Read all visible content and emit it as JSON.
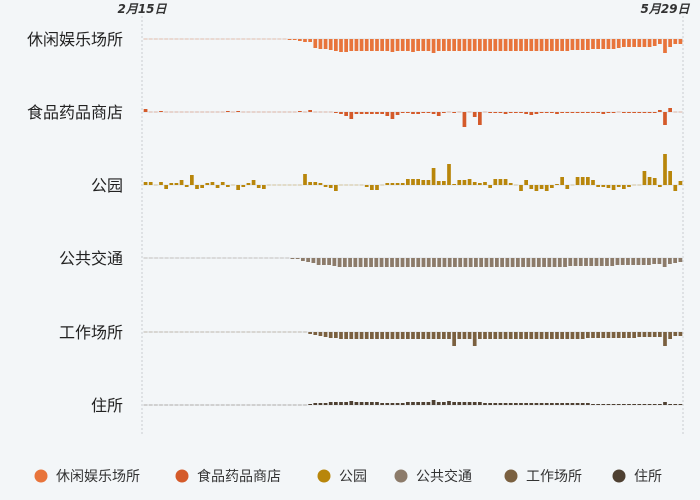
{
  "chart_data": {
    "type": "bar",
    "date_labels": {
      "start": "2月15日",
      "end": "5月29日"
    },
    "x": {
      "start": "2020-02-15",
      "end": "2020-05-29",
      "count": 105
    },
    "grid": false,
    "legend_position": "bottom",
    "series": [
      {
        "name": "休闲娱乐场所",
        "color": "#e8743b",
        "values": [
          0,
          0,
          0,
          0,
          0,
          0,
          0,
          0,
          0,
          0,
          0,
          0,
          0,
          0,
          0,
          0,
          0,
          0,
          0,
          0,
          0,
          0,
          0,
          0,
          0,
          0,
          0,
          0,
          -1,
          -1,
          -2,
          -3,
          -3,
          -9,
          -10,
          -10,
          -11,
          -12,
          -13,
          -13,
          -12,
          -12,
          -12,
          -12,
          -12,
          -12,
          -12,
          -12,
          -13,
          -12,
          -12,
          -12,
          -13,
          -12,
          -12,
          -12,
          -14,
          -12,
          -12,
          -12,
          -12,
          -12,
          -12,
          -12,
          -12,
          -12,
          -12,
          -12,
          -12,
          -12,
          -12,
          -12,
          -12,
          -12,
          -12,
          -12,
          -12,
          -12,
          -12,
          -12,
          -12,
          -12,
          -12,
          -11,
          -11,
          -11,
          -11,
          -10,
          -10,
          -10,
          -10,
          -10,
          -9,
          -8,
          -8,
          -8,
          -8,
          -8,
          -8,
          -7,
          -5,
          -14,
          -8,
          -5,
          -5
        ]
      },
      {
        "name": "食品药品商店",
        "color": "#d45a2a",
        "values": [
          3,
          0,
          0,
          1,
          0,
          0,
          0,
          0,
          0,
          0,
          0,
          0,
          0,
          0,
          0,
          0,
          1,
          0,
          1,
          0,
          0,
          0,
          0,
          0,
          0,
          0,
          0,
          0,
          0,
          0,
          1,
          0,
          2,
          0,
          0,
          0,
          0,
          -1,
          -2,
          -4,
          -7,
          -2,
          -2,
          -2,
          -2,
          -2,
          -2,
          -4,
          -7,
          -3,
          -1,
          -1,
          -2,
          -2,
          -1,
          -1,
          -2,
          -4,
          -1,
          0,
          -1,
          0,
          -15,
          0,
          -5,
          -13,
          0,
          -1,
          -1,
          -1,
          -2,
          -1,
          -1,
          -1,
          -2,
          -3,
          -2,
          -1,
          -1,
          -1,
          -2,
          -1,
          -1,
          -1,
          -1,
          -1,
          -1,
          -1,
          -1,
          -2,
          -1,
          -1,
          0,
          -1,
          -1,
          -1,
          -1,
          -1,
          -1,
          -1,
          2,
          -13,
          4,
          0,
          0
        ]
      },
      {
        "name": "公园",
        "color": "#b8860b",
        "values": [
          3,
          3,
          0,
          3,
          -4,
          2,
          2,
          5,
          -2,
          10,
          -4,
          -3,
          2,
          3,
          -3,
          3,
          -2,
          0,
          -5,
          -2,
          2,
          5,
          -3,
          -4,
          0,
          0,
          0,
          0,
          0,
          0,
          0,
          11,
          3,
          3,
          2,
          -2,
          -3,
          -6,
          0,
          0,
          0,
          0,
          0,
          -2,
          -5,
          -5,
          0,
          2,
          2,
          2,
          2,
          6,
          6,
          6,
          5,
          5,
          17,
          4,
          4,
          21,
          1,
          5,
          5,
          6,
          3,
          2,
          3,
          -3,
          6,
          6,
          6,
          2,
          0,
          -6,
          5,
          -4,
          -6,
          -4,
          -6,
          -3,
          1,
          8,
          -4,
          0,
          8,
          8,
          8,
          5,
          -2,
          -2,
          -3,
          -5,
          -2,
          -4,
          -2,
          0,
          0,
          14,
          8,
          7,
          -2,
          31,
          14,
          -6,
          4
        ]
      },
      {
        "name": "公共交通",
        "color": "#8c7b6a",
        "values": [
          0,
          0,
          0,
          0,
          0,
          0,
          0,
          0,
          0,
          0,
          0,
          0,
          0,
          0,
          0,
          0,
          0,
          0,
          0,
          0,
          0,
          0,
          0,
          0,
          0,
          0,
          0,
          0,
          -1,
          -1,
          -3,
          -4,
          -5,
          -7,
          -7,
          -7,
          -8,
          -9,
          -9,
          -9,
          -9,
          -9,
          -9,
          -9,
          -9,
          -9,
          -9,
          -9,
          -9,
          -9,
          -9,
          -9,
          -9,
          -9,
          -9,
          -9,
          -9,
          -9,
          -9,
          -9,
          -9,
          -9,
          -9,
          -9,
          -9,
          -9,
          -9,
          -9,
          -9,
          -9,
          -9,
          -9,
          -9,
          -9,
          -9,
          -9,
          -9,
          -9,
          -9,
          -9,
          -9,
          -8,
          -8,
          -8,
          -8,
          -8,
          -8,
          -8,
          -8,
          -8,
          -7,
          -7,
          -7,
          -7,
          -7,
          -7,
          -7,
          -6,
          -6,
          -9,
          -6,
          -5,
          -4
        ]
      },
      {
        "name": "工作场所",
        "color": "#7a6040",
        "values": [
          0,
          0,
          0,
          0,
          0,
          0,
          0,
          0,
          0,
          0,
          0,
          0,
          0,
          0,
          0,
          0,
          0,
          0,
          0,
          0,
          0,
          0,
          0,
          0,
          0,
          0,
          0,
          0,
          0,
          0,
          0,
          0,
          -2,
          -3,
          -4,
          -5,
          -6,
          -6,
          -7,
          -7,
          -7,
          -7,
          -7,
          -7,
          -7,
          -7,
          -7,
          -7,
          -7,
          -7,
          -7,
          -7,
          -7,
          -7,
          -7,
          -7,
          -7,
          -7,
          -7,
          -7,
          -14,
          -7,
          -7,
          -7,
          -14,
          -7,
          -7,
          -7,
          -7,
          -7,
          -7,
          -7,
          -7,
          -7,
          -7,
          -7,
          -7,
          -7,
          -7,
          -7,
          -7,
          -7,
          -7,
          -7,
          -7,
          -7,
          -6,
          -6,
          -6,
          -6,
          -6,
          -6,
          -6,
          -6,
          -6,
          -6,
          -5,
          -5,
          -5,
          -5,
          -5,
          -14,
          -7,
          -4,
          -4
        ]
      },
      {
        "name": "住所",
        "color": "#4e4032",
        "values": [
          0,
          0,
          0,
          0,
          0,
          0,
          0,
          0,
          0,
          0,
          0,
          0,
          0,
          0,
          0,
          0,
          0,
          0,
          0,
          0,
          0,
          0,
          0,
          0,
          0,
          0,
          0,
          0,
          0,
          0,
          0,
          0,
          1,
          2,
          2,
          2,
          3,
          3,
          3,
          3,
          4,
          3,
          3,
          3,
          3,
          3,
          2,
          2,
          2,
          2,
          2,
          3,
          3,
          3,
          3,
          3,
          5,
          3,
          3,
          4,
          3,
          3,
          3,
          3,
          3,
          3,
          2,
          2,
          2,
          2,
          2,
          2,
          2,
          2,
          2,
          2,
          2,
          2,
          2,
          2,
          2,
          2,
          2,
          2,
          2,
          2,
          2,
          1,
          1,
          1,
          1,
          1,
          1,
          1,
          1,
          1,
          1,
          1,
          1,
          1,
          1,
          3,
          1,
          1,
          1
        ]
      }
    ]
  }
}
